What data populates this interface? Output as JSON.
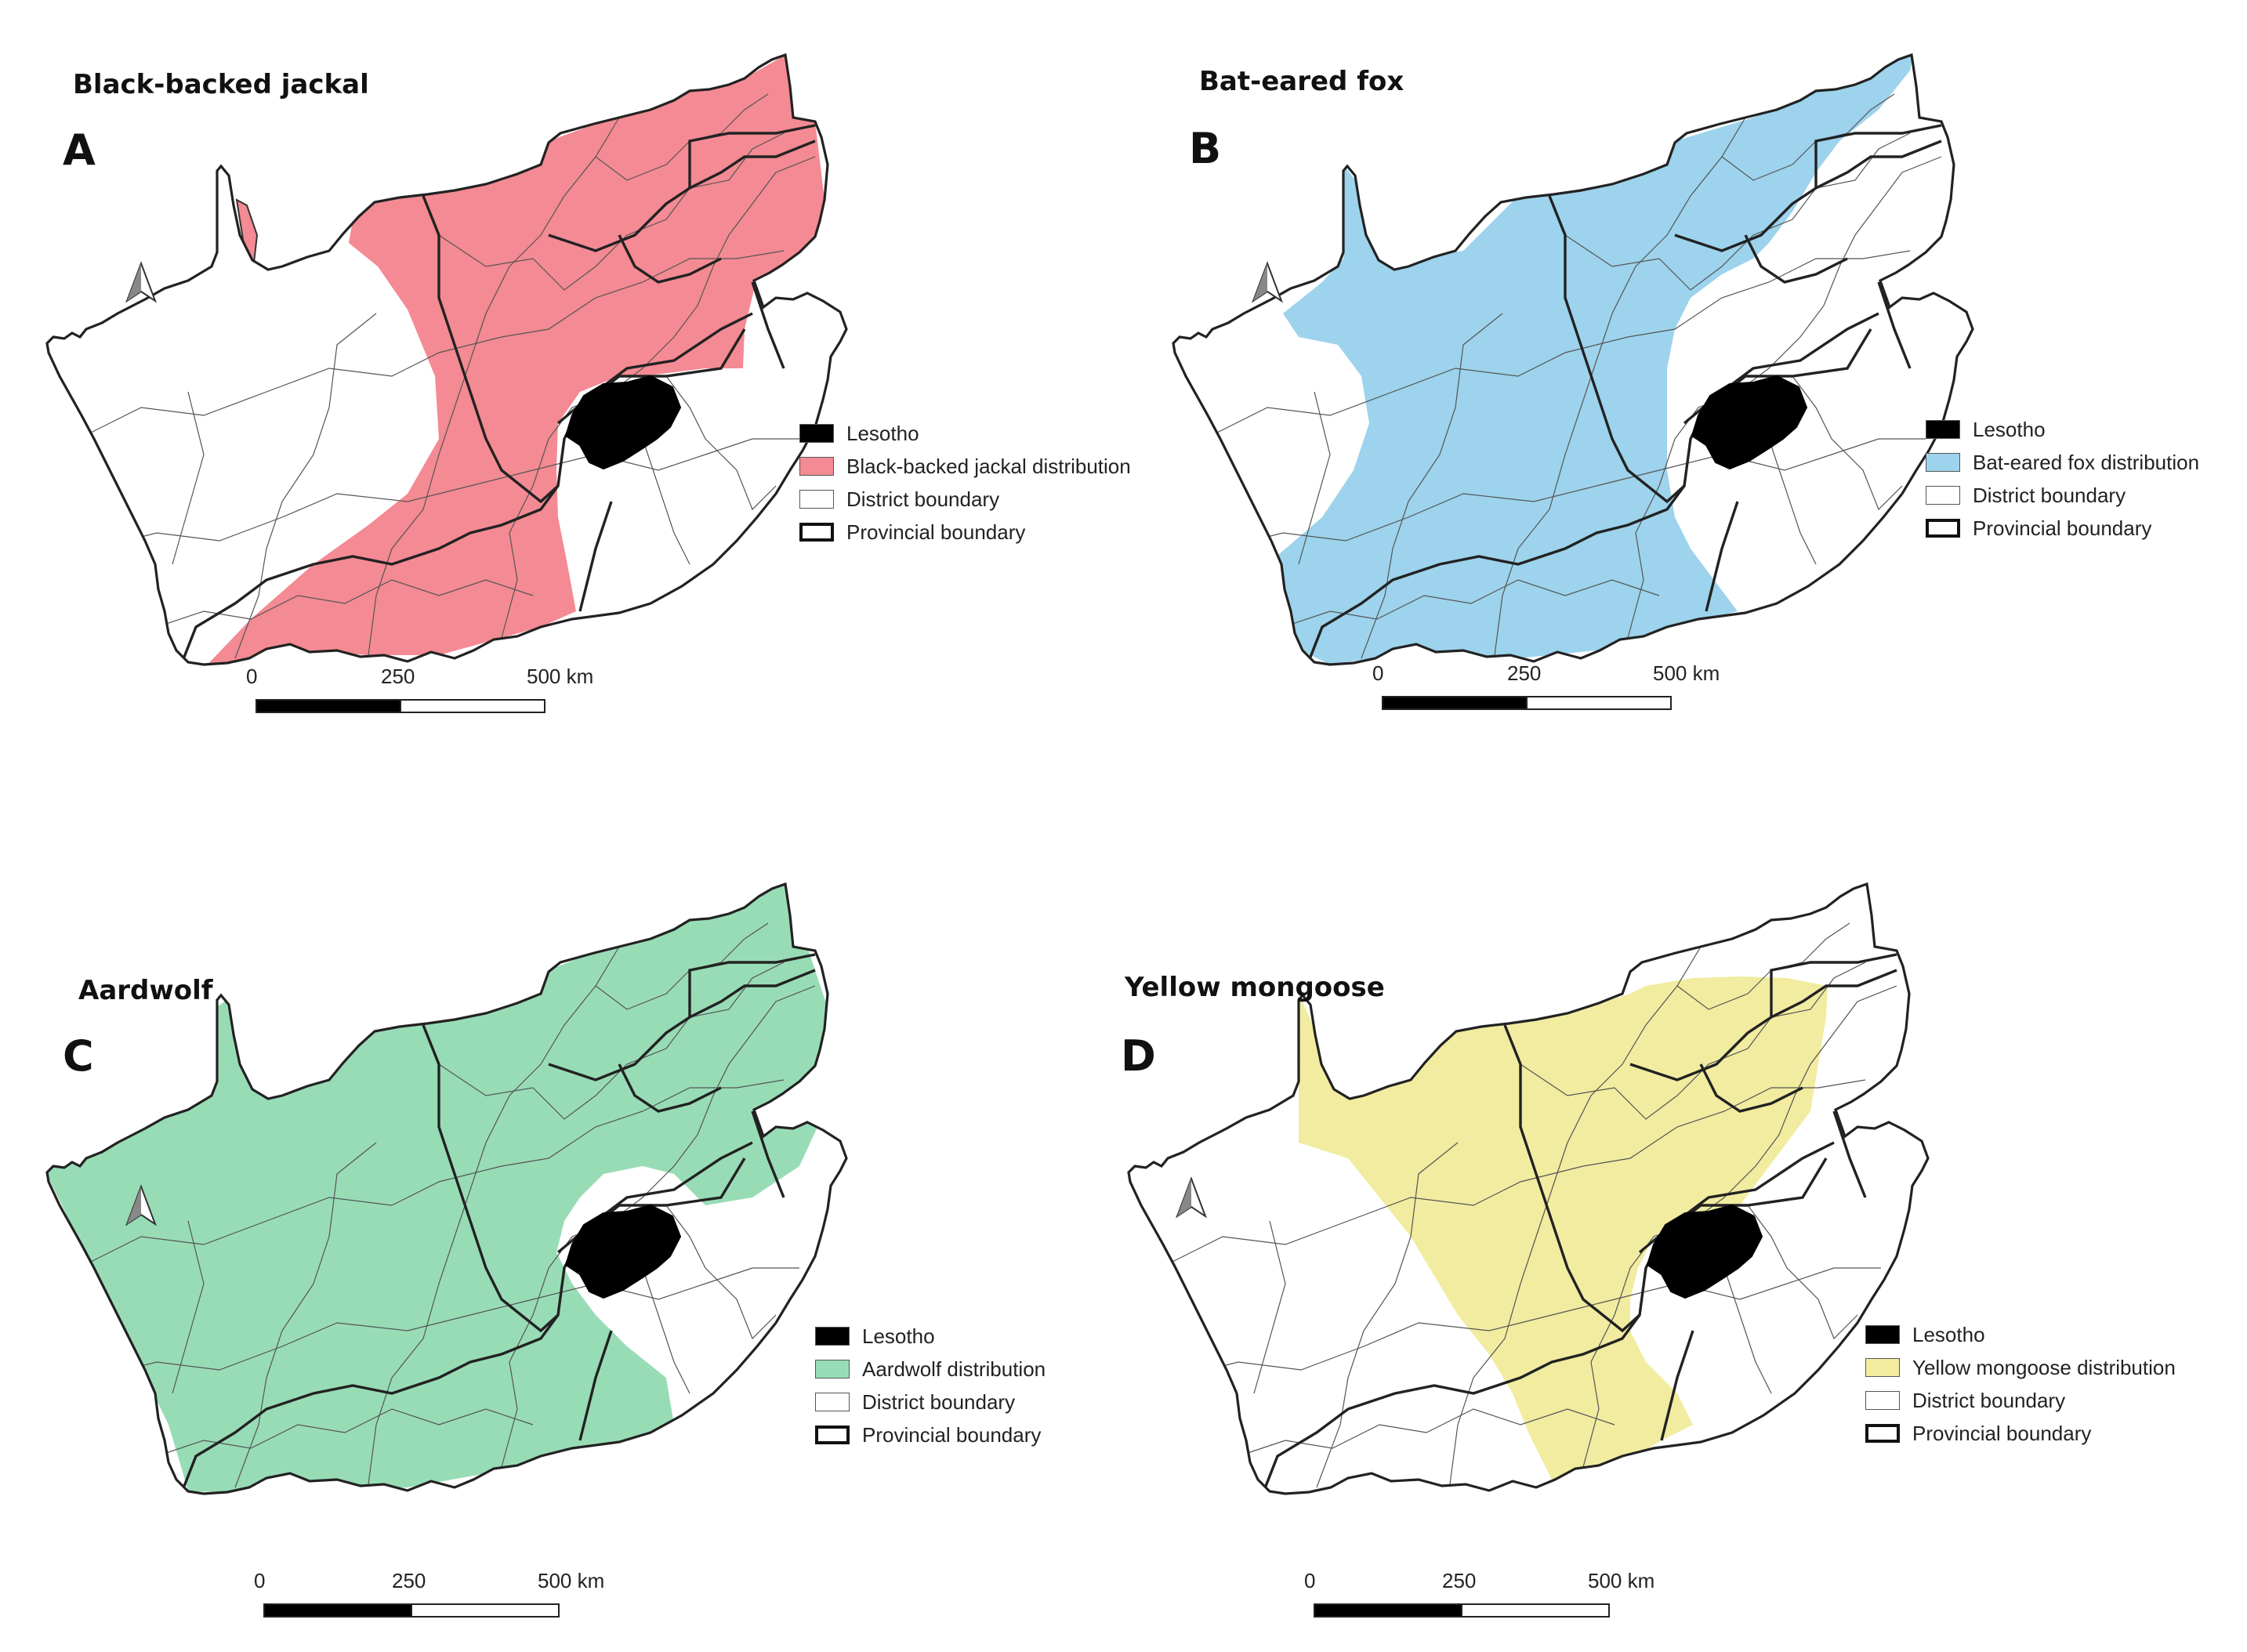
{
  "panels": [
    {
      "letter": "A",
      "title": "Black-backed jackal",
      "distribution_color": "#f48a93",
      "legend": {
        "lesotho": "Lesotho",
        "distribution": "Black-backed jackal distribution",
        "district": "District boundary",
        "provincial": "Provincial boundary"
      },
      "scale": {
        "t0": "0",
        "t1": "250",
        "t2": "500 km"
      }
    },
    {
      "letter": "B",
      "title": "Bat-eared fox",
      "distribution_color": "#9dd3ec",
      "legend": {
        "lesotho": "Lesotho",
        "distribution": "Bat-eared fox distribution",
        "district": "District boundary",
        "provincial": "Provincial boundary"
      },
      "scale": {
        "t0": "0",
        "t1": "250",
        "t2": "500 km"
      }
    },
    {
      "letter": "C",
      "title": "Aardwolf",
      "distribution_color": "#98dcb6",
      "legend": {
        "lesotho": "Lesotho",
        "distribution": "Aardwolf distribution",
        "district": "District boundary",
        "provincial": "Provincial boundary"
      },
      "scale": {
        "t0": "0",
        "t1": "250",
        "t2": "500 km"
      }
    },
    {
      "letter": "D",
      "title": "Yellow mongoose",
      "distribution_color": "#f1eca0",
      "legend": {
        "lesotho": "Lesotho",
        "distribution": "Yellow mongoose distribution",
        "district": "District boundary",
        "provincial": "Provincial boundary"
      },
      "scale": {
        "t0": "0",
        "t1": "250",
        "t2": "500 km"
      }
    }
  ],
  "icons": {
    "north_arrow": "north-arrow-icon"
  }
}
